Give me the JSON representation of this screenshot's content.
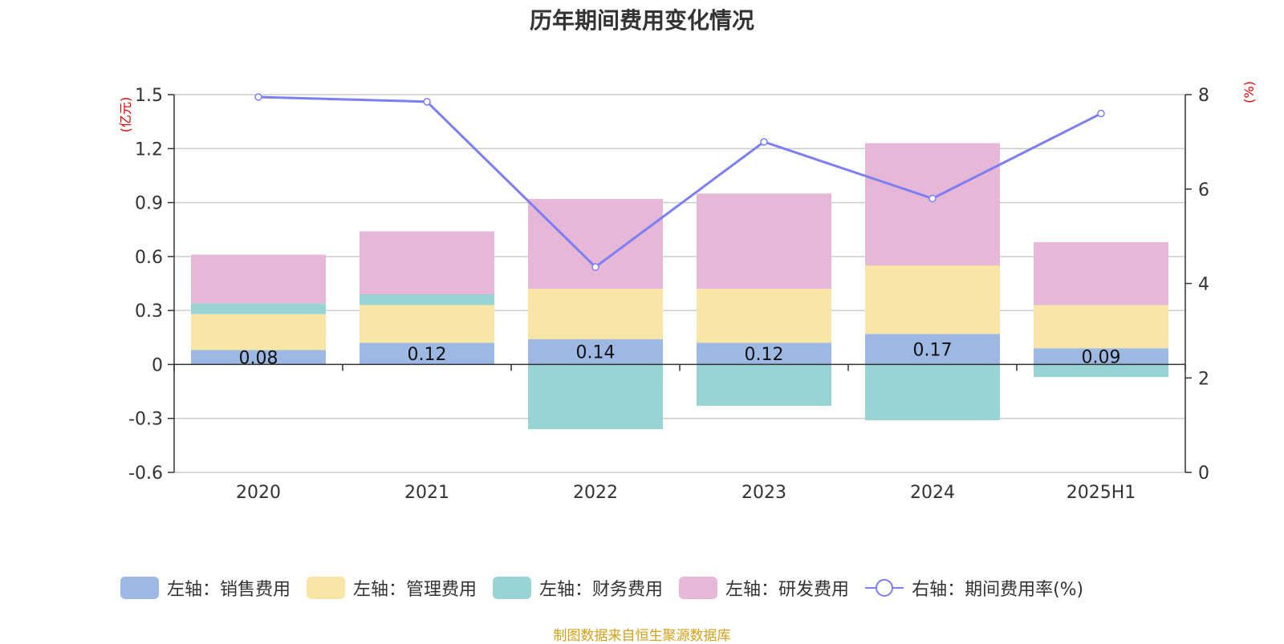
{
  "title": "历年期间费用变化情况",
  "source_note": "制图数据来自恒生聚源数据库",
  "colors": {
    "sales": "#9db8e3",
    "admin": "#f7e6a6",
    "finance": "#98d4d4",
    "rnd": "#e7b7d8",
    "rate": "#7b7ff2",
    "axis_unit": "#e00000",
    "grid": "#cccccc",
    "axis": "#333333"
  },
  "chart_data": {
    "type": "bar",
    "stacked": true,
    "title": "历年期间费用变化情况",
    "categories": [
      "2020",
      "2021",
      "2022",
      "2023",
      "2024",
      "2025H1"
    ],
    "left_axis": {
      "unit": "(亿元)",
      "ylim": [
        -0.6,
        1.5
      ],
      "ticks": [
        "-0.6",
        "-0.3",
        "0",
        "0.3",
        "0.6",
        "0.9",
        "1.2",
        "1.5"
      ]
    },
    "right_axis": {
      "unit": "(%)",
      "ylim": [
        0,
        8
      ],
      "ticks": [
        "0",
        "2",
        "4",
        "6",
        "8"
      ]
    },
    "grid": true,
    "legend_position": "bottom",
    "series": [
      {
        "name": "左轴：销售费用",
        "key": "sales",
        "axis": "left",
        "values": [
          0.08,
          0.12,
          0.14,
          0.12,
          0.17,
          0.09
        ],
        "labels": [
          "0.08",
          "0.12",
          "0.14",
          "0.12",
          "0.17",
          "0.09"
        ]
      },
      {
        "name": "左轴：管理费用",
        "key": "admin",
        "axis": "left",
        "values": [
          0.2,
          0.21,
          0.28,
          0.3,
          0.38,
          0.24
        ]
      },
      {
        "name": "左轴：财务费用",
        "key": "finance",
        "axis": "left",
        "values": [
          0.06,
          0.06,
          -0.36,
          -0.23,
          -0.31,
          -0.07
        ]
      },
      {
        "name": "左轴：研发费用",
        "key": "rnd",
        "axis": "left",
        "values": [
          0.27,
          0.35,
          0.5,
          0.53,
          0.68,
          0.35
        ]
      },
      {
        "name": "右轴：期间费用率(%)",
        "key": "rate",
        "axis": "right",
        "type": "line",
        "values": [
          7.95,
          7.85,
          4.35,
          7.0,
          5.8,
          7.6
        ]
      }
    ]
  }
}
